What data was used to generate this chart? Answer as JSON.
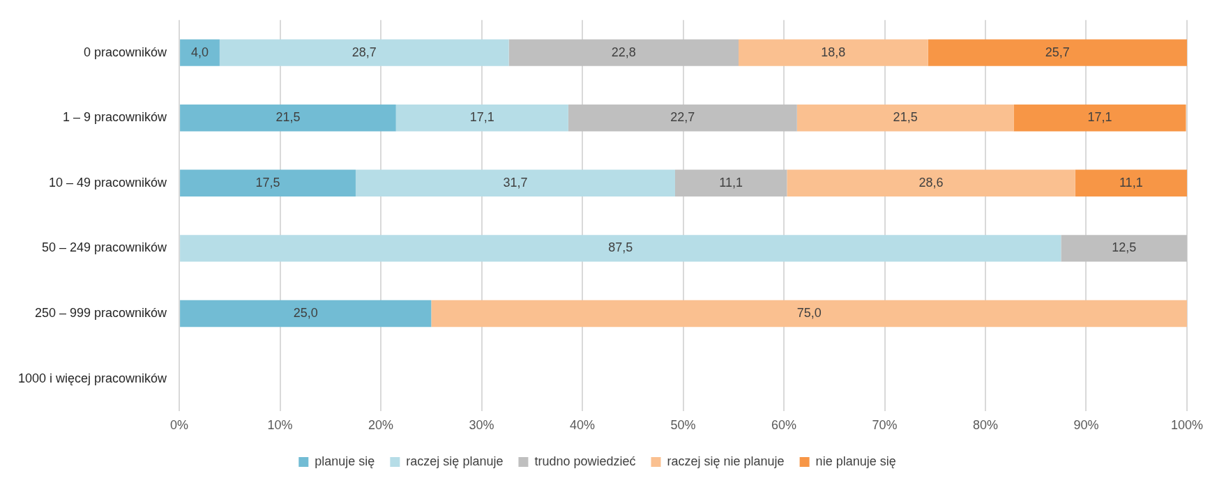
{
  "chart_data": {
    "type": "bar",
    "orientation": "horizontal",
    "stacked": true,
    "categories": [
      "0 pracowników",
      "1 – 9 pracowników",
      "10 – 49 pracowników",
      "50 – 249 pracowników",
      "250 – 999 pracowników",
      "1000 i więcej pracowników"
    ],
    "series": [
      {
        "name": "planuje się",
        "color": "#72bcd4",
        "values": [
          4.0,
          21.5,
          17.5,
          null,
          25.0,
          null
        ],
        "value_labels": [
          "4,0",
          "21,5",
          "17,5",
          null,
          "25,0",
          null
        ]
      },
      {
        "name": "raczej się planuje",
        "color": "#b6dde7",
        "values": [
          28.7,
          17.1,
          31.7,
          87.5,
          null,
          null
        ],
        "value_labels": [
          "28,7",
          "17,1",
          "31,7",
          "87,5",
          null,
          null
        ]
      },
      {
        "name": "trudno powiedzieć",
        "color": "#bfbfbf",
        "values": [
          22.8,
          22.7,
          11.1,
          12.5,
          null,
          null
        ],
        "value_labels": [
          "22,8",
          "22,7",
          "11,1",
          "12,5",
          null,
          null
        ]
      },
      {
        "name": "raczej się nie planuje",
        "color": "#fac090",
        "values": [
          18.8,
          21.5,
          28.6,
          null,
          75.0,
          null
        ],
        "value_labels": [
          "18,8",
          "21,5",
          "28,6",
          null,
          "75,0",
          null
        ]
      },
      {
        "name": "nie planuje się",
        "color": "#f79646",
        "values": [
          25.7,
          17.1,
          11.1,
          null,
          null,
          null
        ],
        "value_labels": [
          "25,7",
          "17,1",
          "11,1",
          null,
          null,
          null
        ]
      }
    ],
    "xlim": [
      0,
      100
    ],
    "xticks": [
      {
        "value": 0,
        "label": "0%"
      },
      {
        "value": 10,
        "label": "10%"
      },
      {
        "value": 20,
        "label": "20%"
      },
      {
        "value": 30,
        "label": "30%"
      },
      {
        "value": 40,
        "label": "40%"
      },
      {
        "value": 50,
        "label": "50%"
      },
      {
        "value": 60,
        "label": "60%"
      },
      {
        "value": 70,
        "label": "70%"
      },
      {
        "value": 80,
        "label": "80%"
      },
      {
        "value": 90,
        "label": "90%"
      },
      {
        "value": 100,
        "label": "100%"
      }
    ],
    "grid": "x",
    "legend": "bottom"
  }
}
